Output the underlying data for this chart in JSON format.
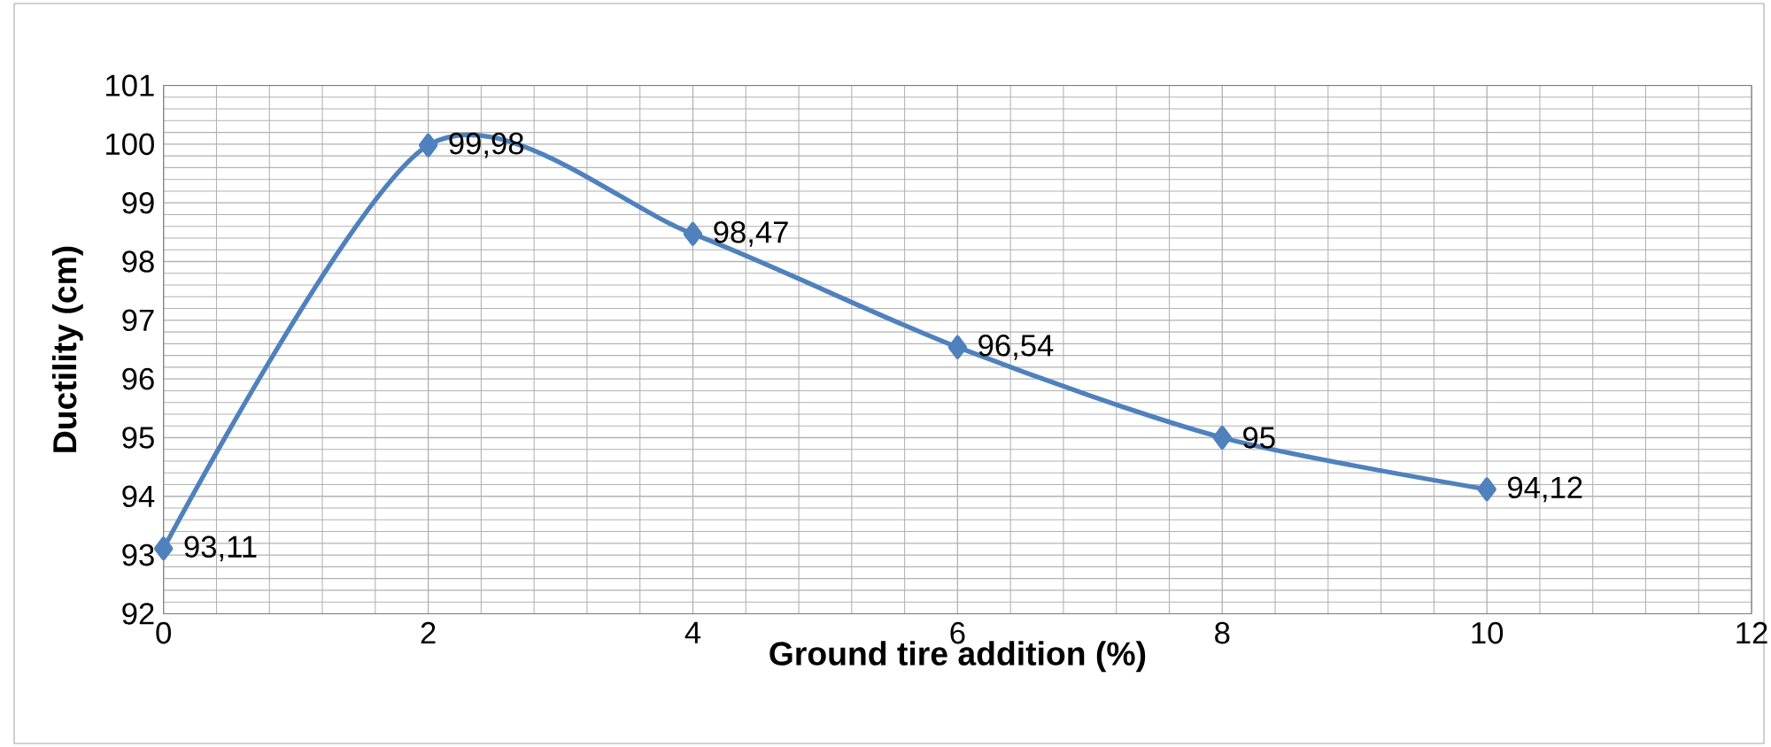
{
  "chart_data": {
    "type": "line",
    "xlabel": "Ground tire addition (%)",
    "ylabel": "Ductility (cm)",
    "x": [
      0,
      2,
      4,
      6,
      8,
      10
    ],
    "series": [
      {
        "color": "#4f81bd",
        "values": [
          93.11,
          99.98,
          98.47,
          96.54,
          95,
          94.12
        ],
        "value_labels": [
          "93,11",
          "99,98",
          "98,47",
          "96,54",
          "95",
          "94,12"
        ]
      }
    ],
    "xlim": [
      0,
      12
    ],
    "xticks": [
      0,
      2,
      4,
      6,
      8,
      10,
      12
    ],
    "ylim": [
      92,
      101
    ],
    "yticks": [
      92,
      93,
      94,
      95,
      96,
      97,
      98,
      99,
      100,
      101
    ],
    "grid": true,
    "marker": "diamond",
    "line_style": "solid"
  }
}
